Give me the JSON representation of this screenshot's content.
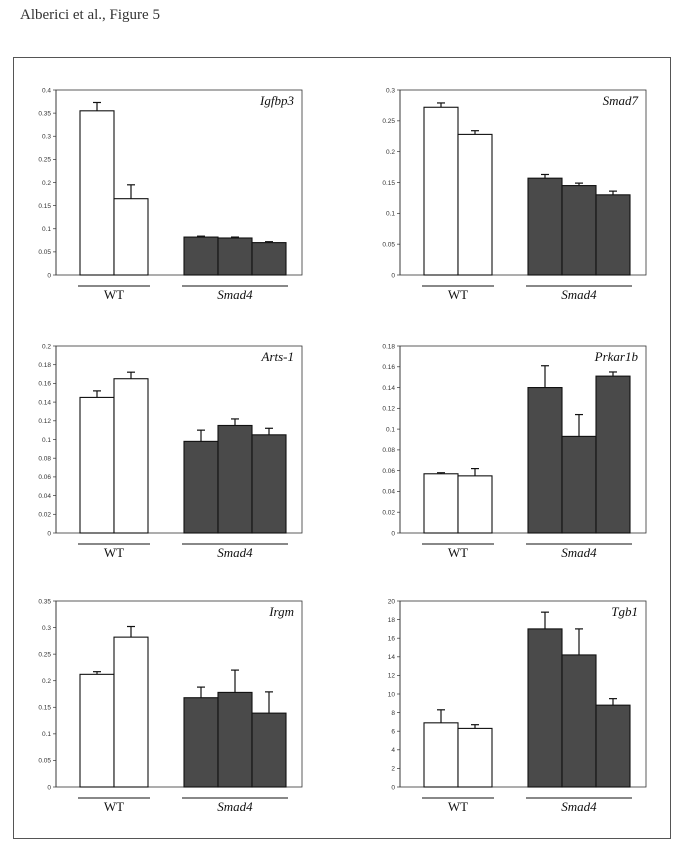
{
  "caption": "Alberici et al., Figure 5",
  "colors": {
    "wt": "#ffffff",
    "smad4": "#4a4a4a",
    "axis": "#333333",
    "border": "#555555"
  },
  "chart_data": [
    {
      "type": "bar",
      "title": "Igfbp3",
      "groups": [
        "WT",
        "Smad4"
      ],
      "ylim": [
        0,
        0.4
      ],
      "yticks": [
        "0",
        "0.05",
        "0.1",
        "0.15",
        "0.2",
        "0.25",
        "0.3",
        "0.35",
        "0.4"
      ],
      "series": [
        {
          "name": "WT",
          "values": [
            0.355,
            0.165
          ],
          "errors": [
            0.018,
            0.03
          ]
        },
        {
          "name": "Smad4",
          "values": [
            0.082,
            0.08,
            0.07
          ],
          "errors": [
            0.002,
            0.002,
            0.002
          ]
        }
      ]
    },
    {
      "type": "bar",
      "title": "Smad7",
      "groups": [
        "WT",
        "Smad4"
      ],
      "ylim": [
        0,
        0.3
      ],
      "yticks": [
        "0",
        "0.05",
        "0.1",
        "0.15",
        "0.2",
        "0.25",
        "0.3"
      ],
      "series": [
        {
          "name": "WT",
          "values": [
            0.272,
            0.228
          ],
          "errors": [
            0.007,
            0.006
          ]
        },
        {
          "name": "Smad4",
          "values": [
            0.157,
            0.145,
            0.13
          ],
          "errors": [
            0.006,
            0.004,
            0.006
          ]
        }
      ]
    },
    {
      "type": "bar",
      "title": "Arts-1",
      "groups": [
        "WT",
        "Smad4"
      ],
      "ylim": [
        0,
        0.2
      ],
      "yticks": [
        "0",
        "0.02",
        "0.04",
        "0.06",
        "0.08",
        "0.1",
        "0.12",
        "0.14",
        "0.16",
        "0.18",
        "0.2"
      ],
      "series": [
        {
          "name": "WT",
          "values": [
            0.145,
            0.165
          ],
          "errors": [
            0.007,
            0.007
          ]
        },
        {
          "name": "Smad4",
          "values": [
            0.098,
            0.115,
            0.105
          ],
          "errors": [
            0.012,
            0.007,
            0.007
          ]
        }
      ]
    },
    {
      "type": "bar",
      "title": "Prkar1b",
      "groups": [
        "WT",
        "Smad4"
      ],
      "ylim": [
        0,
        0.18
      ],
      "yticks": [
        "0",
        "0.02",
        "0.04",
        "0.06",
        "0.08",
        "0.1",
        "0.12",
        "0.14",
        "0.16",
        "0.18"
      ],
      "series": [
        {
          "name": "WT",
          "values": [
            0.057,
            0.055
          ],
          "errors": [
            0.001,
            0.007
          ]
        },
        {
          "name": "Smad4",
          "values": [
            0.14,
            0.093,
            0.151
          ],
          "errors": [
            0.021,
            0.021,
            0.004
          ]
        }
      ]
    },
    {
      "type": "bar",
      "title": "Irgm",
      "groups": [
        "WT",
        "Smad4"
      ],
      "ylim": [
        0,
        0.35
      ],
      "yticks": [
        "0",
        "0.05",
        "0.1",
        "0.15",
        "0.2",
        "0.25",
        "0.3",
        "0.35"
      ],
      "series": [
        {
          "name": "WT",
          "values": [
            0.212,
            0.282
          ],
          "errors": [
            0.005,
            0.02
          ]
        },
        {
          "name": "Smad4",
          "values": [
            0.168,
            0.178,
            0.139
          ],
          "errors": [
            0.02,
            0.042,
            0.04
          ]
        }
      ]
    },
    {
      "type": "bar",
      "title": "Tgb1",
      "groups": [
        "WT",
        "Smad4"
      ],
      "ylim": [
        0,
        20
      ],
      "yticks": [
        "0",
        "2",
        "4",
        "6",
        "8",
        "10",
        "12",
        "14",
        "16",
        "18",
        "20"
      ],
      "series": [
        {
          "name": "WT",
          "values": [
            6.9,
            6.3
          ],
          "errors": [
            1.4,
            0.4
          ]
        },
        {
          "name": "Smad4",
          "values": [
            17.0,
            14.2,
            8.8
          ],
          "errors": [
            1.8,
            2.8,
            0.7
          ]
        }
      ]
    }
  ]
}
